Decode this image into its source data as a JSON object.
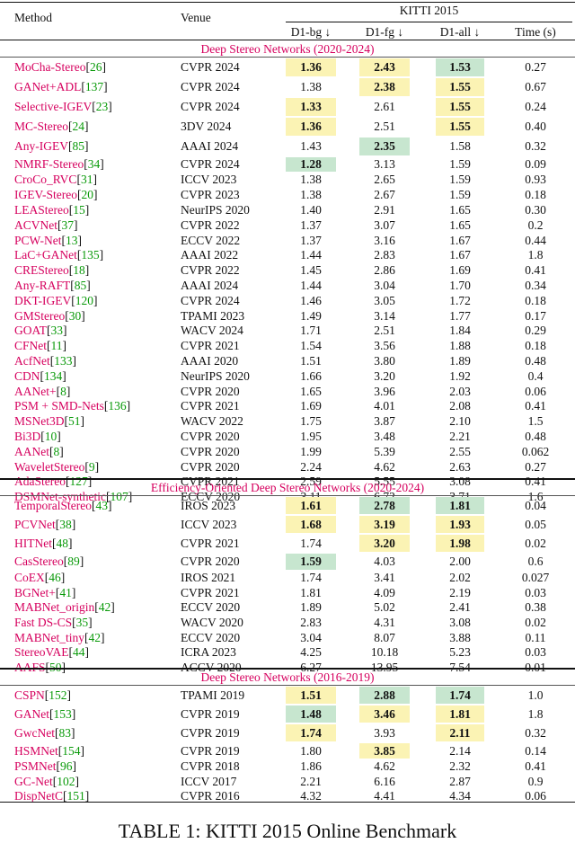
{
  "header": {
    "method": "Method",
    "venue": "Venue",
    "group": "KITTI 2015",
    "d1_bg": "D1-bg ↓",
    "d1_fg": "D1-fg ↓",
    "d1_all": "D1-all ↓",
    "time": "Time (s)"
  },
  "colors": {
    "yellow": "#fbf3b4",
    "green": "#c7e6cf",
    "method": "#d6005e",
    "ref": "#0a9a0a"
  },
  "sections": [
    {
      "title": "Deep Stereo Networks (2020-2024)",
      "rows": [
        {
          "name": "MoCha-Stereo",
          "ref": "26",
          "venue": "CVPR 2024",
          "bg": "1.36",
          "fg": "2.43",
          "all": "1.53",
          "time": "0.27",
          "bg_b": true,
          "fg_b": true,
          "all_b": true,
          "bg_h": "yellow",
          "fg_h": "yellow",
          "all_h": "green"
        },
        {
          "name": "GANet+ADL",
          "ref": "137",
          "venue": "CVPR 2024",
          "bg": "1.38",
          "fg": "2.38",
          "all": "1.55",
          "time": "0.67",
          "fg_b": true,
          "all_b": true,
          "fg_h": "yellow",
          "all_h": "yellow"
        },
        {
          "name": "Selective-IGEV",
          "ref": "23",
          "venue": "CVPR 2024",
          "bg": "1.33",
          "fg": "2.61",
          "all": "1.55",
          "time": "0.24",
          "bg_b": true,
          "all_b": true,
          "bg_h": "yellow",
          "all_h": "yellow"
        },
        {
          "name": "MC-Stereo",
          "ref": "24",
          "venue": "3DV 2024",
          "bg": "1.36",
          "fg": "2.51",
          "all": "1.55",
          "time": "0.40",
          "bg_b": true,
          "all_b": true,
          "bg_h": "yellow",
          "all_h": "yellow"
        },
        {
          "name": "Any-IGEV",
          "ref": "85",
          "venue": "AAAI 2024",
          "bg": "1.43",
          "fg": "2.35",
          "all": "1.58",
          "time": "0.32",
          "fg_b": true,
          "fg_h": "green"
        },
        {
          "name": "NMRF-Stereo",
          "ref": "34",
          "venue": "CVPR 2024",
          "bg": "1.28",
          "fg": "3.13",
          "all": "1.59",
          "time": "0.09",
          "bg_b": true,
          "bg_h": "green"
        },
        {
          "name": "CroCo_RVC",
          "ref": "31",
          "venue": "ICCV 2023",
          "bg": "1.38",
          "fg": "2.65",
          "all": "1.59",
          "time": "0.93"
        },
        {
          "name": "IGEV-Stereo",
          "ref": "20",
          "venue": "CVPR 2023",
          "bg": "1.38",
          "fg": "2.67",
          "all": "1.59",
          "time": "0.18"
        },
        {
          "name": "LEAStereo",
          "ref": "15",
          "venue": "NeurIPS 2020",
          "bg": "1.40",
          "fg": "2.91",
          "all": "1.65",
          "time": "0.30"
        },
        {
          "name": "ACVNet",
          "ref": "37",
          "venue": "CVPR 2022",
          "bg": "1.37",
          "fg": "3.07",
          "all": "1.65",
          "time": "0.2"
        },
        {
          "name": "PCW-Net",
          "ref": "13",
          "venue": "ECCV 2022",
          "bg": "1.37",
          "fg": "3.16",
          "all": "1.67",
          "time": "0.44"
        },
        {
          "name": "LaC+GANet",
          "ref": "135",
          "venue": "AAAI 2022",
          "bg": "1.44",
          "fg": "2.83",
          "all": "1.67",
          "time": "1.8"
        },
        {
          "name": "CREStereo",
          "ref": "18",
          "venue": "CVPR 2022",
          "bg": "1.45",
          "fg": "2.86",
          "all": "1.69",
          "time": "0.41"
        },
        {
          "name": "Any-RAFT",
          "ref": "85",
          "venue": "AAAI 2024",
          "bg": "1.44",
          "fg": "3.04",
          "all": "1.70",
          "time": "0.34"
        },
        {
          "name": "DKT-IGEV",
          "ref": "120",
          "venue": "CVPR 2024",
          "bg": "1.46",
          "fg": "3.05",
          "all": "1.72",
          "time": "0.18"
        },
        {
          "name": "GMStereo",
          "ref": "30",
          "venue": "TPAMI 2023",
          "bg": "1.49",
          "fg": "3.14",
          "all": "1.77",
          "time": "0.17"
        },
        {
          "name": "GOAT",
          "ref": "33",
          "venue": "WACV 2024",
          "bg": "1.71",
          "fg": "2.51",
          "all": "1.84",
          "time": "0.29"
        },
        {
          "name": "CFNet",
          "ref": "11",
          "venue": "CVPR 2021",
          "bg": "1.54",
          "fg": "3.56",
          "all": "1.88",
          "time": "0.18"
        },
        {
          "name": "AcfNet",
          "ref": "133",
          "venue": "AAAI 2020",
          "bg": "1.51",
          "fg": "3.80",
          "all": "1.89",
          "time": "0.48"
        },
        {
          "name": "CDN",
          "ref": "134",
          "venue": "NeurIPS 2020",
          "bg": "1.66",
          "fg": "3.20",
          "all": "1.92",
          "time": "0.4"
        },
        {
          "name": "AANet+",
          "ref": "8",
          "venue": "CVPR 2020",
          "bg": "1.65",
          "fg": "3.96",
          "all": "2.03",
          "time": "0.06"
        },
        {
          "name": "PSM + SMD-Nets",
          "ref": "136",
          "venue": "CVPR 2021",
          "bg": "1.69",
          "fg": "4.01",
          "all": "2.08",
          "time": "0.41"
        },
        {
          "name": "MSNet3D",
          "ref": "51",
          "venue": "WACV 2022",
          "bg": "1.75",
          "fg": "3.87",
          "all": "2.10",
          "time": "1.5"
        },
        {
          "name": "Bi3D",
          "ref": "10",
          "venue": "CVPR 2020",
          "bg": "1.95",
          "fg": "3.48",
          "all": "2.21",
          "time": "0.48"
        },
        {
          "name": "AANet",
          "ref": "8",
          "venue": "CVPR 2020",
          "bg": "1.99",
          "fg": "5.39",
          "all": "2.55",
          "time": "0.062"
        },
        {
          "name": "WaveletStereo",
          "ref": "9",
          "venue": "CVPR 2020",
          "bg": "2.24",
          "fg": "4.62",
          "all": "2.63",
          "time": "0.27"
        },
        {
          "name": "AdaStereo",
          "ref": "127",
          "venue": "CVPR 2021",
          "bg": "2.59",
          "fg": "5.55",
          "all": "3.08",
          "time": "0.41"
        },
        {
          "name": "DSMNet-synthetic",
          "ref": "107",
          "venue": "ECCV 2020",
          "bg": "3.11",
          "fg": "6.72",
          "all": "3.71",
          "time": "1.6"
        }
      ]
    },
    {
      "title": "Efficiency-Oriented Deep Stereo Networks (2020-2024)",
      "rows": [
        {
          "name": "TemporalStereo",
          "ref": "43",
          "venue": "IROS 2023",
          "bg": "1.61",
          "fg": "2.78",
          "all": "1.81",
          "time": "0.04",
          "bg_b": true,
          "fg_b": true,
          "all_b": true,
          "bg_h": "yellow",
          "fg_h": "green",
          "all_h": "green"
        },
        {
          "name": "PCVNet",
          "ref": "38",
          "venue": "ICCV 2023",
          "bg": "1.68",
          "fg": "3.19",
          "all": "1.93",
          "time": "0.05",
          "bg_b": true,
          "fg_b": true,
          "all_b": true,
          "bg_h": "yellow",
          "fg_h": "yellow",
          "all_h": "yellow"
        },
        {
          "name": "HITNet",
          "ref": "48",
          "venue": "CVPR 2021",
          "bg": "1.74",
          "fg": "3.20",
          "all": "1.98",
          "time": "0.02",
          "fg_b": true,
          "all_b": true,
          "fg_h": "yellow",
          "all_h": "yellow"
        },
        {
          "name": "CasStereo",
          "ref": "89",
          "venue": "CVPR 2020",
          "bg": "1.59",
          "fg": "4.03",
          "all": "2.00",
          "time": "0.6",
          "bg_b": true,
          "bg_h": "green"
        },
        {
          "name": "CoEX",
          "ref": "46",
          "venue": "IROS 2021",
          "bg": "1.74",
          "fg": "3.41",
          "all": "2.02",
          "time": "0.027"
        },
        {
          "name": "BGNet+",
          "ref": "41",
          "venue": "CVPR 2021",
          "bg": "1.81",
          "fg": "4.09",
          "all": "2.19",
          "time": "0.03"
        },
        {
          "name": "MABNet_origin",
          "ref": "42",
          "venue": "ECCV 2020",
          "bg": "1.89",
          "fg": "5.02",
          "all": "2.41",
          "time": "0.38"
        },
        {
          "name": "Fast DS-CS",
          "ref": "35",
          "venue": "WACV 2020",
          "bg": "2.83",
          "fg": "4.31",
          "all": "3.08",
          "time": "0.02"
        },
        {
          "name": "MABNet_tiny",
          "ref": "42",
          "venue": "ECCV 2020",
          "bg": "3.04",
          "fg": "8.07",
          "all": "3.88",
          "time": "0.11"
        },
        {
          "name": "StereoVAE",
          "ref": "44",
          "venue": "ICRA 2023",
          "bg": "4.25",
          "fg": "10.18",
          "all": "5.23",
          "time": "0.03"
        },
        {
          "name": "AAFS",
          "ref": "50",
          "venue": "ACCV 2020",
          "bg": "6.27",
          "fg": "13.95",
          "all": "7.54",
          "time": "0.01"
        }
      ]
    },
    {
      "title": "Deep Stereo Networks (2016-2019)",
      "rows": [
        {
          "name": "CSPN",
          "ref": "152",
          "venue": "TPAMI 2019",
          "bg": "1.51",
          "fg": "2.88",
          "all": "1.74",
          "time": "1.0",
          "bg_b": true,
          "fg_b": true,
          "all_b": true,
          "bg_h": "yellow",
          "fg_h": "green",
          "all_h": "green"
        },
        {
          "name": "GANet",
          "ref": "153",
          "venue": "CVPR 2019",
          "bg": "1.48",
          "fg": "3.46",
          "all": "1.81",
          "time": "1.8",
          "bg_b": true,
          "fg_b": true,
          "all_b": true,
          "bg_h": "green",
          "fg_h": "yellow",
          "all_h": "yellow"
        },
        {
          "name": "GwcNet",
          "ref": "83",
          "venue": "CVPR 2019",
          "bg": "1.74",
          "fg": "3.93",
          "all": "2.11",
          "time": "0.32",
          "bg_b": true,
          "all_b": true,
          "bg_h": "yellow",
          "all_h": "yellow"
        },
        {
          "name": "HSMNet",
          "ref": "154",
          "venue": "CVPR 2019",
          "bg": "1.80",
          "fg": "3.85",
          "all": "2.14",
          "time": "0.14",
          "fg_b": true,
          "fg_h": "yellow"
        },
        {
          "name": "PSMNet",
          "ref": "96",
          "venue": "CVPR 2018",
          "bg": "1.86",
          "fg": "4.62",
          "all": "2.32",
          "time": "0.41"
        },
        {
          "name": "GC-Net",
          "ref": "102",
          "venue": "ICCV 2017",
          "bg": "2.21",
          "fg": "6.16",
          "all": "2.87",
          "time": "0.9"
        },
        {
          "name": "DispNetC",
          "ref": "151",
          "venue": "CVPR 2016",
          "bg": "4.32",
          "fg": "4.41",
          "all": "4.34",
          "time": "0.06"
        }
      ]
    }
  ],
  "caption": "TABLE 1: KITTI 2015 Online Benchmark"
}
